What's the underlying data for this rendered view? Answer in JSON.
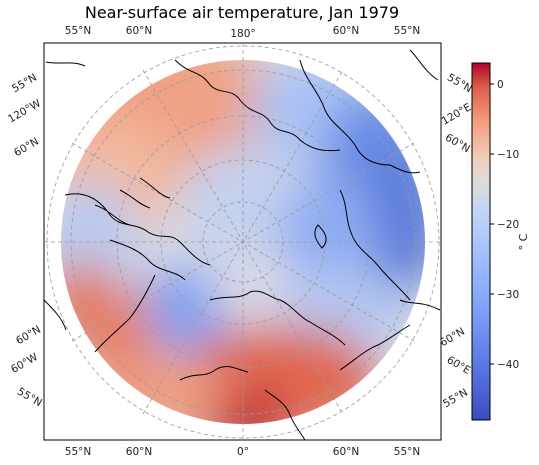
{
  "title": "Near-surface air temperature, Jan 1979",
  "colorbar": {
    "label": "° C",
    "ticks": [
      "0",
      "−10",
      "−20",
      "−30",
      "−40"
    ],
    "vmin": -48,
    "vmax": 3,
    "colormap": "coolwarm",
    "low_color": "#3b4cc0",
    "high_color": "#b40426"
  },
  "map": {
    "projection": "North Polar Stereographic",
    "gridlines": "dashed",
    "lon_labels": {
      "top": [
        "55°N",
        "60°N",
        "180°",
        "60°N",
        "55°N"
      ],
      "bottom": [
        "55°N",
        "60°N",
        "0°",
        "60°N",
        "55°N"
      ],
      "left": [
        "55°N",
        "120°W",
        "60°N",
        "60°N",
        "60°W",
        "55°N"
      ],
      "right": [
        "55°N",
        "120°E",
        "60°N",
        "60°N",
        "60°E",
        "55°N"
      ]
    }
  }
}
